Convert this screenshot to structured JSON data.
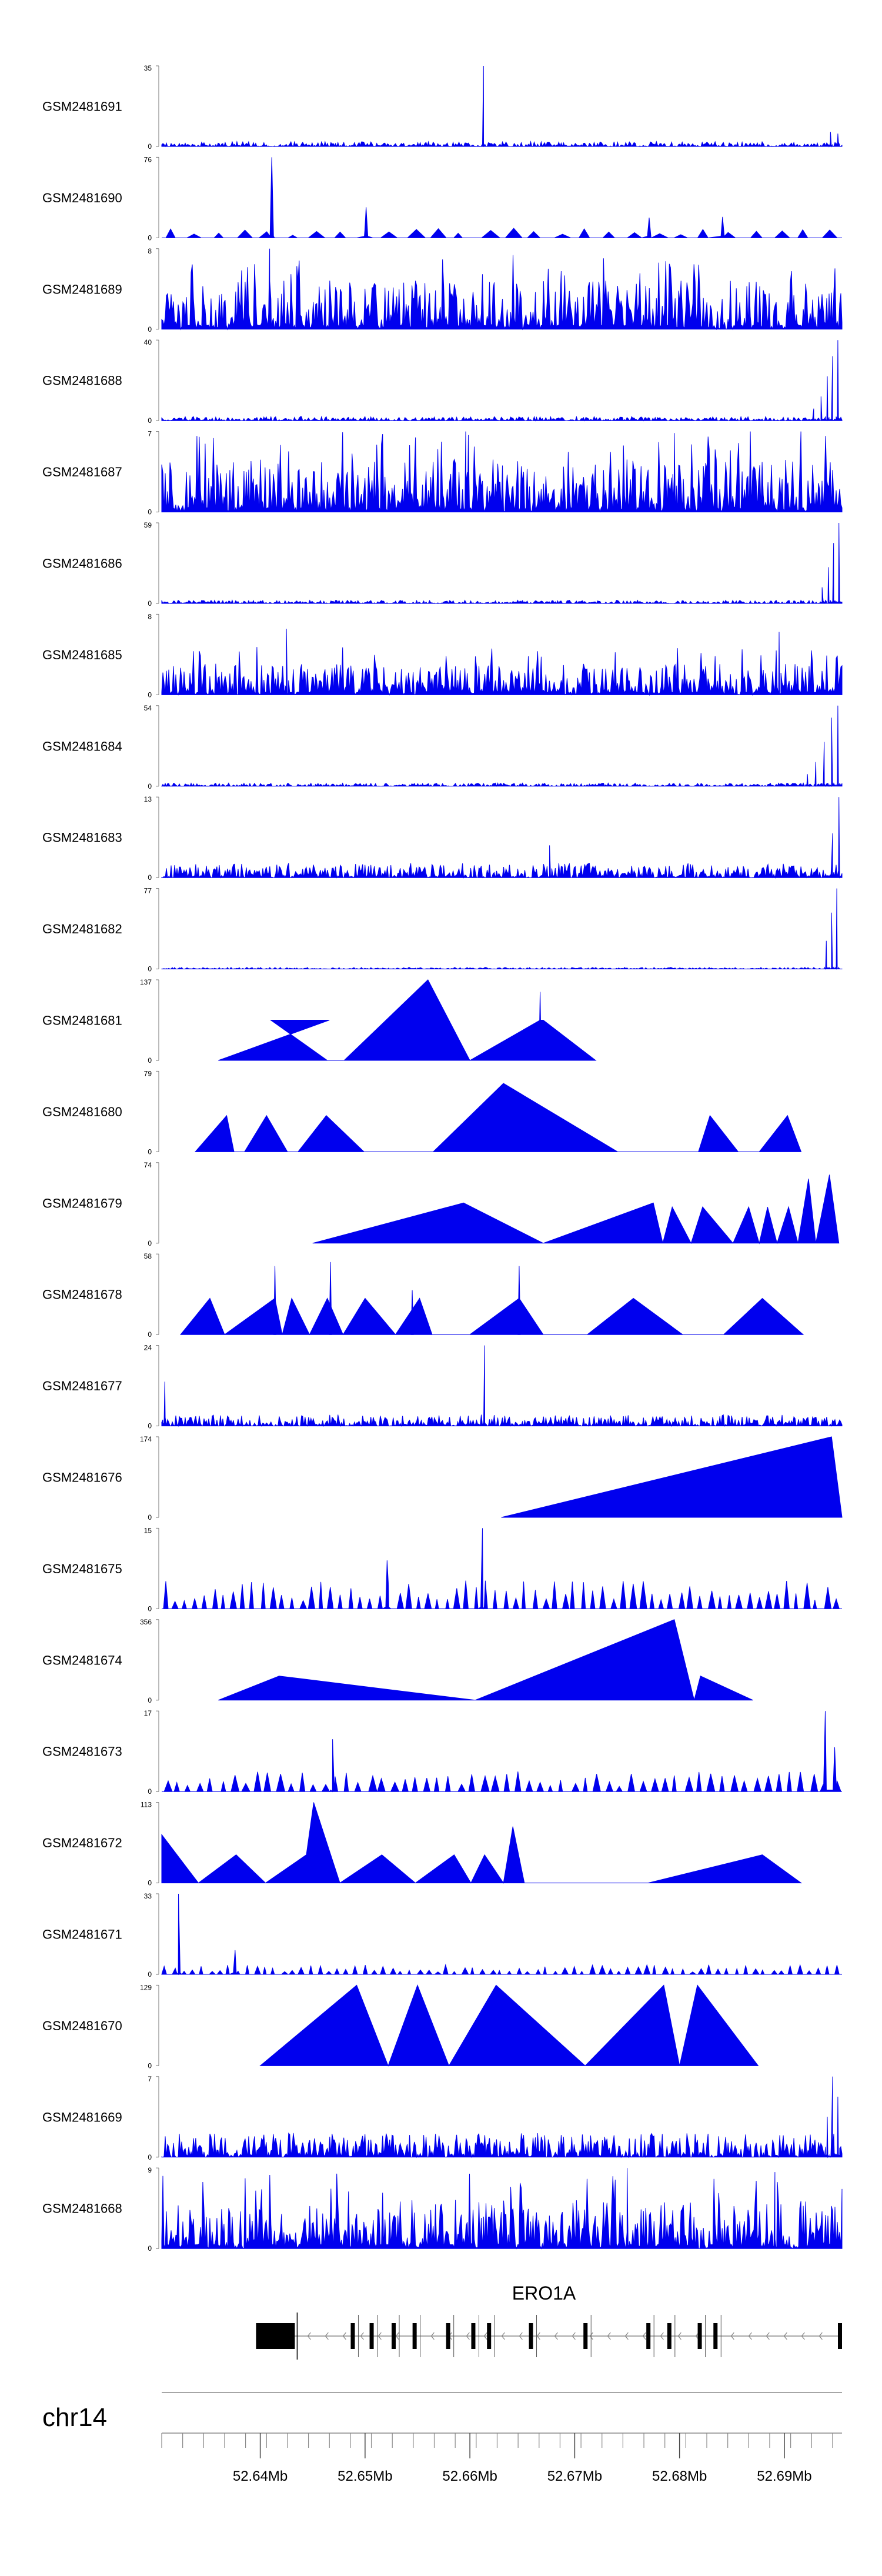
{
  "chart_data": {
    "type": "area",
    "title": "",
    "accent_color": "#0000ee",
    "xlim": [
      52.6306,
      52.6955
    ],
    "tracks": [
      {
        "name": "GSM2481691",
        "ymax": "35",
        "ymin": "0",
        "style": "noise",
        "base": 0.06,
        "peaks": [
          [
            52.6613,
            1.0
          ],
          [
            52.6944,
            0.18
          ],
          [
            52.6951,
            0.16
          ]
        ]
      },
      {
        "name": "GSM2481690",
        "ymax": "76",
        "ymin": "0",
        "style": "sparse",
        "n": 28,
        "base": 0.12,
        "peaks": [
          [
            52.6411,
            1.0
          ],
          [
            52.6501,
            0.38
          ],
          [
            52.6771,
            0.25
          ],
          [
            52.6841,
            0.26
          ]
        ]
      },
      {
        "name": "GSM2481689",
        "ymax": "8",
        "ymin": "0",
        "style": "dense",
        "base": 0.55,
        "peaks": [
          [
            52.6409,
            1.0
          ]
        ]
      },
      {
        "name": "GSM2481688",
        "ymax": "40",
        "ymin": "0",
        "style": "noise",
        "base": 0.05,
        "peaks": [
          [
            52.6951,
            1.0
          ],
          [
            52.6946,
            0.8
          ],
          [
            52.6941,
            0.55
          ],
          [
            52.6935,
            0.3
          ],
          [
            52.6928,
            0.15
          ]
        ]
      },
      {
        "name": "GSM2481687",
        "ymax": "7",
        "ymin": "0",
        "style": "dense",
        "base": 0.6,
        "peaks": [
          [
            52.6596,
            1.0
          ],
          [
            52.6795,
            0.98
          ]
        ]
      },
      {
        "name": "GSM2481686",
        "ymax": "59",
        "ymin": "0",
        "style": "noise",
        "base": 0.04,
        "peaks": [
          [
            52.6952,
            1.0
          ],
          [
            52.6947,
            0.75
          ],
          [
            52.6942,
            0.45
          ],
          [
            52.6936,
            0.2
          ]
        ]
      },
      {
        "name": "GSM2481685",
        "ymax": "8",
        "ymin": "0",
        "style": "dense",
        "base": 0.35,
        "peaks": [
          [
            52.6425,
            0.82
          ],
          [
            52.6895,
            0.78
          ]
        ]
      },
      {
        "name": "GSM2481684",
        "ymax": "54",
        "ymin": "0",
        "style": "noise",
        "base": 0.04,
        "peaks": [
          [
            52.6951,
            1.0
          ],
          [
            52.6945,
            0.85
          ],
          [
            52.6938,
            0.55
          ],
          [
            52.693,
            0.3
          ],
          [
            52.6922,
            0.15
          ]
        ]
      },
      {
        "name": "GSM2481683",
        "ymax": "13",
        "ymin": "0",
        "style": "noise",
        "base": 0.18,
        "peaks": [
          [
            52.6952,
            1.0
          ],
          [
            52.6946,
            0.55
          ],
          [
            52.6676,
            0.4
          ]
        ]
      },
      {
        "name": "GSM2481682",
        "ymax": "77",
        "ymin": "0",
        "style": "noise",
        "base": 0.02,
        "peaks": [
          [
            52.695,
            1.0
          ],
          [
            52.6945,
            0.7
          ],
          [
            52.694,
            0.35
          ]
        ]
      },
      {
        "name": "GSM2481681",
        "ymax": "137",
        "ymin": "0",
        "style": "tri",
        "pts": [
          [
            52.636,
            0
          ],
          [
            52.6466,
            0.5
          ],
          [
            52.641,
            0.5
          ],
          [
            52.6464,
            0
          ],
          [
            52.648,
            0
          ],
          [
            52.656,
            1.0
          ],
          [
            52.66,
            0
          ],
          [
            52.6667,
            0.5
          ],
          [
            52.667,
            0.5
          ],
          [
            52.672,
            0
          ]
        ],
        "spikes": [
          [
            52.6667,
            0.85
          ]
        ]
      },
      {
        "name": "GSM2481680",
        "ymax": "79",
        "ymin": "0",
        "style": "tri",
        "pts": [
          [
            52.6338,
            0
          ],
          [
            52.6368,
            0.45
          ],
          [
            52.6375,
            0
          ],
          [
            52.6355,
            0
          ],
          [
            52.6385,
            0
          ],
          [
            52.6406,
            0.45
          ],
          [
            52.6426,
            0
          ],
          [
            52.6436,
            0
          ],
          [
            52.6463,
            0.45
          ],
          [
            52.6499,
            0
          ],
          [
            52.6565,
            0
          ],
          [
            52.6632,
            0.85
          ],
          [
            52.6741,
            0
          ],
          [
            52.6818,
            0
          ],
          [
            52.6829,
            0.45
          ],
          [
            52.6856,
            0
          ],
          [
            52.6876,
            0
          ],
          [
            52.6903,
            0.45
          ],
          [
            52.6916,
            0
          ]
        ]
      },
      {
        "name": "GSM2481679",
        "ymax": "74",
        "ymin": "0",
        "style": "tri",
        "pts": [
          [
            52.645,
            0
          ],
          [
            52.6594,
            0.5
          ],
          [
            52.667,
            0
          ],
          [
            52.6775,
            0.5
          ],
          [
            52.6784,
            0
          ],
          [
            52.6793,
            0.45
          ],
          [
            52.6811,
            0
          ],
          [
            52.6822,
            0.45
          ],
          [
            52.6851,
            0
          ],
          [
            52.6866,
            0.45
          ],
          [
            52.6876,
            0
          ],
          [
            52.6884,
            0.45
          ],
          [
            52.6893,
            0
          ],
          [
            52.6904,
            0.45
          ],
          [
            52.6913,
            0
          ],
          [
            52.6923,
            0.8
          ],
          [
            52.693,
            0
          ],
          [
            52.6943,
            0.85
          ],
          [
            52.6952,
            0
          ]
        ]
      },
      {
        "name": "GSM2481678",
        "ymax": "58",
        "ymin": "0",
        "style": "tri",
        "pts": [
          [
            52.6324,
            0
          ],
          [
            52.6352,
            0.45
          ],
          [
            52.6366,
            0
          ],
          [
            52.6414,
            0.45
          ],
          [
            52.6421,
            0
          ],
          [
            52.643,
            0.45
          ],
          [
            52.6447,
            0
          ],
          [
            52.6464,
            0.45
          ],
          [
            52.6479,
            0
          ],
          [
            52.65,
            0.45
          ],
          [
            52.6529,
            0
          ],
          [
            52.6552,
            0.45
          ],
          [
            52.6564,
            0
          ],
          [
            52.66,
            0
          ],
          [
            52.6647,
            0.45
          ],
          [
            52.667,
            0
          ],
          [
            52.6712,
            0
          ],
          [
            52.6756,
            0.45
          ],
          [
            52.6803,
            0
          ],
          [
            52.6842,
            0
          ],
          [
            52.6879,
            0.45
          ],
          [
            52.6918,
            0
          ]
        ],
        "spikes": [
          [
            52.6414,
            0.85
          ],
          [
            52.6467,
            0.9
          ],
          [
            52.6545,
            0.55
          ],
          [
            52.6647,
            0.85
          ]
        ]
      },
      {
        "name": "GSM2481677",
        "ymax": "24",
        "ymin": "0",
        "style": "noise",
        "base": 0.14,
        "peaks": [
          [
            52.6614,
            1.0
          ],
          [
            52.6309,
            0.55
          ]
        ]
      },
      {
        "name": "GSM2481676",
        "ymax": "174",
        "ymin": "0",
        "style": "tri",
        "pts": [
          [
            52.663,
            0
          ],
          [
            52.6945,
            1.0
          ],
          [
            52.6955,
            0
          ]
        ]
      },
      {
        "name": "GSM2481675",
        "ymax": "15",
        "ymin": "0",
        "style": "sparse",
        "n": 70,
        "base": 0.35,
        "peaks": [
          [
            52.6612,
            1.0
          ],
          [
            52.6521,
            0.6
          ]
        ]
      },
      {
        "name": "GSM2481674",
        "ymax": "356",
        "ymin": "0",
        "style": "tri",
        "pts": [
          [
            52.636,
            0
          ],
          [
            52.6418,
            0.3
          ],
          [
            52.6605,
            0
          ],
          [
            52.6795,
            1.0
          ],
          [
            52.6814,
            0
          ],
          [
            52.682,
            0.3
          ],
          [
            52.687,
            0
          ]
        ]
      },
      {
        "name": "GSM2481673",
        "ymax": "17",
        "ymin": "0",
        "style": "sparse",
        "n": 60,
        "base": 0.25,
        "peaks": [
          [
            52.6469,
            0.65
          ],
          [
            52.6939,
            1.0
          ],
          [
            52.6948,
            0.55
          ]
        ]
      },
      {
        "name": "GSM2481672",
        "ymax": "113",
        "ymin": "0",
        "style": "tri",
        "pts": [
          [
            52.6306,
            0
          ],
          [
            52.6306,
            0.6
          ],
          [
            52.6341,
            0
          ],
          [
            52.6377,
            0.35
          ],
          [
            52.6405,
            0
          ],
          [
            52.6444,
            0.35
          ],
          [
            52.6451,
            1.0
          ],
          [
            52.6476,
            0
          ],
          [
            52.6516,
            0.35
          ],
          [
            52.6548,
            0
          ],
          [
            52.6585,
            0.35
          ],
          [
            52.6601,
            0
          ],
          [
            52.6614,
            0.35
          ],
          [
            52.6632,
            0
          ],
          [
            52.6641,
            0.7
          ],
          [
            52.6652,
            0
          ],
          [
            52.677,
            0
          ],
          [
            52.6879,
            0.35
          ],
          [
            52.6916,
            0
          ]
        ]
      },
      {
        "name": "GSM2481671",
        "ymax": "33",
        "ymin": "0",
        "style": "sparse",
        "n": 75,
        "base": 0.12,
        "peaks": [
          [
            52.6322,
            1.0
          ],
          [
            52.6376,
            0.3
          ]
        ]
      },
      {
        "name": "GSM2481670",
        "ymax": "129",
        "ymin": "0",
        "style": "tri",
        "pts": [
          [
            52.64,
            0
          ],
          [
            52.6492,
            1.0
          ],
          [
            52.6522,
            0
          ],
          [
            52.655,
            1.0
          ],
          [
            52.658,
            0
          ],
          [
            52.6625,
            1.0
          ],
          [
            52.671,
            0
          ],
          [
            52.6785,
            1.0
          ],
          [
            52.68,
            0
          ],
          [
            52.6817,
            1.0
          ],
          [
            52.6875,
            0
          ]
        ]
      },
      {
        "name": "GSM2481669",
        "ymax": "7",
        "ymin": "0",
        "style": "noise",
        "base": 0.3,
        "peaks": [
          [
            52.6946,
            1.0
          ],
          [
            52.6951,
            0.75
          ],
          [
            52.6941,
            0.5
          ]
        ]
      },
      {
        "name": "GSM2481668",
        "ymax": "9",
        "ymin": "0",
        "style": "dense",
        "base": 0.55,
        "peaks": [
          [
            52.675,
            1.0
          ],
          [
            52.6891,
            0.95
          ]
        ]
      }
    ],
    "gene": {
      "label": "ERO1A",
      "exons": [
        52.6488,
        52.6506,
        52.6527,
        52.6547,
        52.6579,
        52.6603,
        52.6618,
        52.6658,
        52.671,
        52.677,
        52.679,
        52.6819,
        52.6834
      ],
      "utr_start": 52.6396,
      "utr_end": 52.6433,
      "tx_end": 52.6955
    },
    "chromosome": "chr14",
    "axis": {
      "ticks": [
        "52.64Mb",
        "52.65Mb",
        "52.66Mb",
        "52.67Mb",
        "52.68Mb",
        "52.69Mb"
      ],
      "tick_values": [
        52.64,
        52.65,
        52.66,
        52.67,
        52.68,
        52.69
      ],
      "minor_step": 0.002
    }
  }
}
